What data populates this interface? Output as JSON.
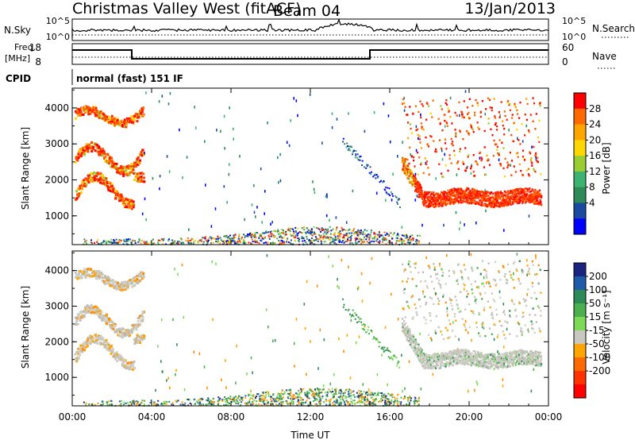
{
  "header": {
    "station": "Christmas Valley West (fitACF)",
    "beam": "Beam 04",
    "date": "13/Jan/2013"
  },
  "top_panels": {
    "nsky": {
      "label": "N.Sky",
      "ticks": [
        "10^5",
        "10^0"
      ]
    },
    "nsearch": {
      "label": "N.Search",
      "ticks": [
        "10^5",
        "10^0"
      ]
    },
    "freq": {
      "label_line1": "Freq.",
      "label_line2": "[MHz]",
      "ticks": [
        "18",
        "8"
      ]
    },
    "nave": {
      "label": "Nave",
      "ticks": [
        "60",
        "0"
      ]
    },
    "cpid": {
      "label": "CPID",
      "mode": "normal (fast) 151 IF"
    }
  },
  "chart_data": [
    {
      "type": "heatmap",
      "title": "",
      "quantity": "Power",
      "xlabel": "",
      "ylabel": "Slant Range [km]",
      "x_ticks": [
        "00:00",
        "04:00",
        "08:00",
        "12:00",
        "16:00",
        "20:00",
        "00:00"
      ],
      "y_ticks": [
        "1000",
        "2000",
        "3000",
        "4000"
      ],
      "ylim": [
        200,
        4550
      ],
      "colorbar": {
        "label": "Power [dB]",
        "ticks": [
          "28",
          "24",
          "20",
          "16",
          "12",
          "8",
          "4"
        ],
        "colors": [
          "#ff0000",
          "#ff6a00",
          "#ffa500",
          "#ffd700",
          "#9acd32",
          "#3cb371",
          "#2e8b57",
          "#1c4aa0",
          "#0000ff"
        ]
      }
    },
    {
      "type": "heatmap",
      "title": "",
      "quantity": "Velocity",
      "xlabel": "Time UT",
      "ylabel": "Slant Range [km]",
      "x_ticks": [
        "00:00",
        "04:00",
        "08:00",
        "12:00",
        "16:00",
        "20:00",
        "00:00"
      ],
      "y_ticks": [
        "1000",
        "2000",
        "3000",
        "4000"
      ],
      "ylim": [
        200,
        4550
      ],
      "colorbar": {
        "label": "Velocity [m s⁻¹]",
        "ticks": [
          "200",
          "100",
          "50",
          "15",
          "-15",
          "-50",
          "-100",
          "-200"
        ],
        "colors": [
          "#1a237e",
          "#1e5aa8",
          "#2e8b57",
          "#4caf50",
          "#7ed957",
          "#c8c8c0",
          "#ffa500",
          "#ff6a00",
          "#ff3300",
          "#ff0000"
        ]
      }
    }
  ]
}
